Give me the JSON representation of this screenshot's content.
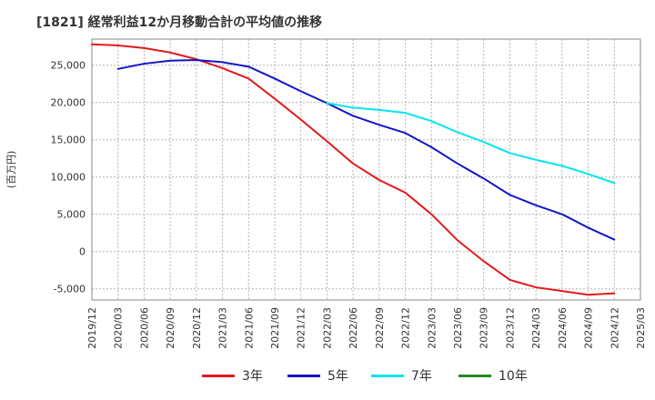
{
  "chart_data": {
    "type": "line",
    "title": "[1821]  経常利益12か月移動合計の平均値の推移",
    "ylabel": "(百万円)",
    "xlabel": "",
    "ylim": [
      -6500,
      28500
    ],
    "yticks": [
      -5000,
      0,
      5000,
      10000,
      15000,
      20000,
      25000
    ],
    "ytick_labels": [
      "-5,000",
      "0",
      "5,000",
      "10,000",
      "15,000",
      "20,000",
      "25,000"
    ],
    "xtick_labels": [
      "2019/12",
      "2020/03",
      "2020/06",
      "2020/09",
      "2020/12",
      "2021/03",
      "2021/06",
      "2021/09",
      "2021/12",
      "2022/03",
      "2022/06",
      "2022/09",
      "2022/12",
      "2023/03",
      "2023/06",
      "2023/09",
      "2023/12",
      "2024/03",
      "2024/06",
      "2024/09",
      "2024/12",
      "2025/03"
    ],
    "grid": true,
    "legend_position": "bottom",
    "series": [
      {
        "name": "3年",
        "color": "#e31a1c",
        "points": [
          [
            "2019/12",
            27800
          ],
          [
            "2020/03",
            27650
          ],
          [
            "2020/06",
            27300
          ],
          [
            "2020/09",
            26700
          ],
          [
            "2020/12",
            25800
          ],
          [
            "2021/03",
            24600
          ],
          [
            "2021/06",
            23200
          ],
          [
            "2021/09",
            20500
          ],
          [
            "2021/12",
            17700
          ],
          [
            "2022/03",
            14800
          ],
          [
            "2022/06",
            11800
          ],
          [
            "2022/09",
            9600
          ],
          [
            "2022/12",
            7900
          ],
          [
            "2023/03",
            5000
          ],
          [
            "2023/06",
            1500
          ],
          [
            "2023/09",
            -1300
          ],
          [
            "2023/12",
            -3800
          ],
          [
            "2024/03",
            -4800
          ],
          [
            "2024/06",
            -5300
          ],
          [
            "2024/09",
            -5800
          ],
          [
            "2024/12",
            -5600
          ]
        ]
      },
      {
        "name": "5年",
        "color": "#1515c8",
        "points": [
          [
            "2020/03",
            24500
          ],
          [
            "2020/06",
            25200
          ],
          [
            "2020/09",
            25600
          ],
          [
            "2020/12",
            25700
          ],
          [
            "2021/03",
            25400
          ],
          [
            "2021/06",
            24800
          ],
          [
            "2021/09",
            23200
          ],
          [
            "2021/12",
            21500
          ],
          [
            "2022/03",
            19900
          ],
          [
            "2022/06",
            18200
          ],
          [
            "2022/09",
            17000
          ],
          [
            "2022/12",
            15900
          ],
          [
            "2023/03",
            14000
          ],
          [
            "2023/06",
            11800
          ],
          [
            "2023/09",
            9800
          ],
          [
            "2023/12",
            7600
          ],
          [
            "2024/03",
            6200
          ],
          [
            "2024/06",
            5000
          ],
          [
            "2024/09",
            3200
          ],
          [
            "2024/12",
            1600
          ]
        ]
      },
      {
        "name": "7年",
        "color": "#00e5ee",
        "points": [
          [
            "2022/03",
            19900
          ],
          [
            "2022/06",
            19300
          ],
          [
            "2022/09",
            19000
          ],
          [
            "2022/12",
            18600
          ],
          [
            "2023/03",
            17500
          ],
          [
            "2023/06",
            16000
          ],
          [
            "2023/09",
            14700
          ],
          [
            "2023/12",
            13200
          ],
          [
            "2024/03",
            12300
          ],
          [
            "2024/06",
            11500
          ],
          [
            "2024/09",
            10400
          ],
          [
            "2024/12",
            9200
          ]
        ]
      },
      {
        "name": "10年",
        "color": "#228b22",
        "points": []
      }
    ]
  }
}
